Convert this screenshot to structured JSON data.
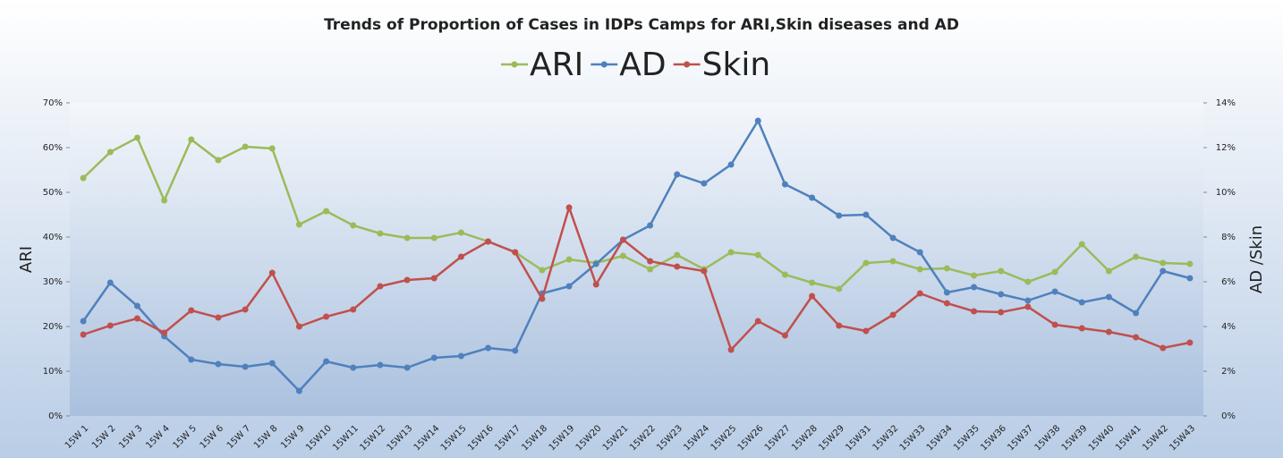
{
  "chart_data": {
    "type": "line",
    "title": "Trends of Proportion of Cases in IDPs Camps for ARI,Skin diseases and AD",
    "y_label": "ARI",
    "y2_label": "AD /Skin",
    "categories": [
      "15W 1",
      "15W 2",
      "15W 3",
      "15W 4",
      "15W 5",
      "15W 6",
      "15W 7",
      "15W 8",
      "15W 9",
      "15W10",
      "15W11",
      "15W12",
      "15W13",
      "15W14",
      "15W15",
      "15W16",
      "15W17",
      "15W18",
      "15W19",
      "15W20",
      "15W21",
      "15W22",
      "15W23",
      "15W24",
      "15W25",
      "15W26",
      "15W27",
      "15W28",
      "15W29",
      "15W31",
      "15W32",
      "15W33",
      "15W34",
      "15W35",
      "15W36",
      "15W37",
      "15W38",
      "15W39",
      "15W40",
      "15W41",
      "15W42",
      "15W43"
    ],
    "series": [
      {
        "name": "ARI",
        "color": "#9bbb59",
        "axis": "y",
        "values": [
          53.2,
          59,
          62.2,
          48.2,
          61.8,
          57.2,
          60.2,
          59.8,
          42.8,
          45.8,
          42.6,
          40.8,
          39.8,
          39.8,
          41,
          39,
          36.6,
          32.6,
          35,
          34.2,
          35.8,
          32.8,
          36,
          32.8,
          36.6,
          36,
          31.6,
          29.8,
          28.4,
          34.2,
          34.6,
          32.8,
          33,
          31.4,
          32.4,
          30,
          32.2,
          38.4,
          32.4,
          35.6,
          34.2,
          34
        ]
      },
      {
        "name": "AD",
        "color": "#4f81bd",
        "axis": "y2",
        "values": [
          4.24,
          5.96,
          4.92,
          3.56,
          2.52,
          2.32,
          2.2,
          2.36,
          1.12,
          2.44,
          2.16,
          2.28,
          2.16,
          2.6,
          2.68,
          3.04,
          2.92,
          5.48,
          5.8,
          6.8,
          7.88,
          8.52,
          10.8,
          10.4,
          11.24,
          13.2,
          10.36,
          9.76,
          8.96,
          9,
          7.96,
          7.32,
          5.52,
          5.76,
          5.44,
          5.16,
          5.56,
          5.08,
          5.32,
          4.6,
          6.48,
          6.16
        ]
      },
      {
        "name": "Skin",
        "color": "#c0504d",
        "axis": "y2",
        "values": [
          3.64,
          4.04,
          4.36,
          3.72,
          4.72,
          4.4,
          4.76,
          6.4,
          4,
          4.44,
          4.76,
          5.8,
          6.08,
          6.16,
          7.12,
          7.8,
          7.32,
          5.24,
          9.32,
          5.88,
          7.88,
          6.92,
          6.68,
          6.48,
          2.96,
          4.24,
          3.6,
          5.36,
          4.04,
          3.8,
          4.52,
          5.48,
          5.04,
          4.68,
          4.64,
          4.88,
          4.08,
          3.92,
          3.76,
          3.52,
          3.04,
          3.28
        ]
      }
    ],
    "ylim": [
      0,
      70
    ],
    "yticks": [
      {
        "value": 0,
        "label": "0%"
      },
      {
        "value": 10,
        "label": "10%"
      },
      {
        "value": 20,
        "label": "20%"
      },
      {
        "value": 30,
        "label": "30%"
      },
      {
        "value": 40,
        "label": "40%"
      },
      {
        "value": 50,
        "label": "50%"
      },
      {
        "value": 60,
        "label": "60%"
      },
      {
        "value": 70,
        "label": "70%"
      }
    ],
    "y2lim": [
      0,
      14
    ],
    "y2ticks": [
      {
        "value": 0,
        "label": "0%"
      },
      {
        "value": 2,
        "label": "2%"
      },
      {
        "value": 4,
        "label": "4%"
      },
      {
        "value": 6,
        "label": "6%"
      },
      {
        "value": 8,
        "label": "8%"
      },
      {
        "value": 10,
        "label": "10%"
      },
      {
        "value": 12,
        "label": "12%"
      },
      {
        "value": 14,
        "label": "14%"
      }
    ],
    "legend": "top"
  }
}
